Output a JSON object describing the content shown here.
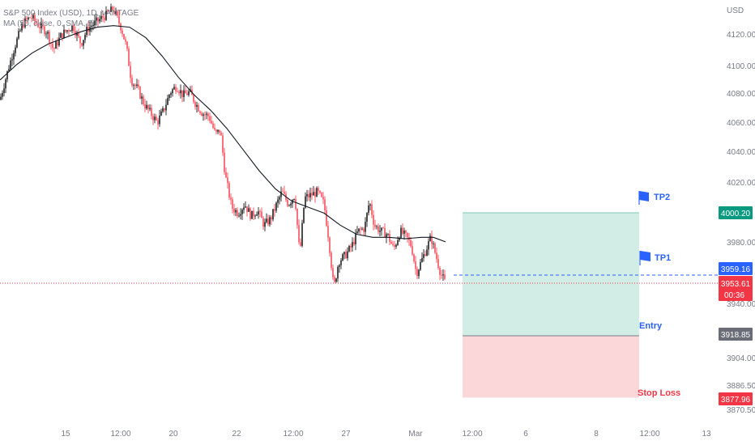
{
  "legend": {
    "symbol_line": "S&P 500 Index (USD), 1D, VANTAGE",
    "ma_line": "MA (50, close, 0, SMA, 5)"
  },
  "price_axis": {
    "currency": "USD"
  },
  "levels": {
    "tp2": {
      "label": "TP2",
      "price_tag": "4000.20"
    },
    "tp1": {
      "label": "TP1"
    },
    "entry": {
      "label": "Entry",
      "price_tag": "3918.85"
    },
    "stop": {
      "label": "Stop Loss",
      "price_tag": "3877.96"
    },
    "dashed": {
      "price_tag": "3959.16"
    },
    "current": {
      "price_tag": "3953.61",
      "countdown": "00:36"
    }
  },
  "colors": {
    "up": "#000000",
    "down": "#f23645",
    "ma": "#131722",
    "profit_zone": "#d2ece6",
    "loss_zone": "#fbd7da",
    "tp_flag": "#2962ff",
    "entry_label": "#2962ff",
    "stop_label": "#f23645",
    "tag_tp2": "#089981",
    "tag_entry": "#787b86",
    "tag_stop": "#f23645",
    "tag_dashed": "#2962ff",
    "tag_current": "#f23645"
  },
  "chart_data": {
    "type": "candlestick",
    "y_axis": {
      "ticks": [
        4120.0,
        4100.0,
        4080.0,
        4060.0,
        4040.0,
        4020.0,
        3980.0,
        3940.0,
        3904.0,
        3886.5,
        3870.5
      ],
      "tick_labels": [
        "4120.00",
        "4100.00",
        "4080.00",
        "4060.00",
        "4040.00",
        "4020.00",
        "3980.00",
        "3940.00",
        "3904.00",
        "3886.50",
        "3870.50"
      ]
    },
    "x_axis": {
      "tick_labels": [
        "15",
        "12:00",
        "20",
        "22",
        "12:00",
        "27",
        "Mar",
        "12:00",
        "6",
        "8",
        "12:00",
        "13"
      ]
    },
    "position": {
      "tp2": 4000.2,
      "entry": 3918.85,
      "stop": 3877.96,
      "tp1": 3965.0
    },
    "close_path": [
      [
        0,
        4075
      ],
      [
        10,
        4095
      ],
      [
        18,
        4110
      ],
      [
        28,
        4125
      ],
      [
        38,
        4130
      ],
      [
        48,
        4124
      ],
      [
        58,
        4120
      ],
      [
        66,
        4108
      ],
      [
        76,
        4118
      ],
      [
        90,
        4124
      ],
      [
        100,
        4112
      ],
      [
        108,
        4122
      ],
      [
        118,
        4126
      ],
      [
        128,
        4130
      ],
      [
        140,
        4135
      ],
      [
        150,
        4122
      ],
      [
        156,
        4110
      ],
      [
        162,
        4088
      ],
      [
        170,
        4082
      ],
      [
        178,
        4072
      ],
      [
        186,
        4066
      ],
      [
        194,
        4060
      ],
      [
        202,
        4068
      ],
      [
        210,
        4080
      ],
      [
        218,
        4084
      ],
      [
        226,
        4078
      ],
      [
        234,
        4080
      ],
      [
        242,
        4072
      ],
      [
        250,
        4066
      ],
      [
        258,
        4064
      ],
      [
        266,
        4052
      ],
      [
        272,
        4055
      ],
      [
        278,
        4025
      ],
      [
        286,
        4004
      ],
      [
        294,
        4000
      ],
      [
        302,
        4006
      ],
      [
        310,
        3998
      ],
      [
        318,
        4002
      ],
      [
        326,
        3992
      ],
      [
        334,
        3996
      ],
      [
        340,
        4004
      ],
      [
        348,
        4014
      ],
      [
        356,
        4006
      ],
      [
        364,
        4012
      ],
      [
        370,
        3972
      ],
      [
        376,
        4010
      ],
      [
        384,
        4012
      ],
      [
        392,
        4014
      ],
      [
        400,
        4006
      ],
      [
        406,
        3982
      ],
      [
        412,
        3950
      ],
      [
        418,
        3968
      ],
      [
        426,
        3972
      ],
      [
        434,
        3978
      ],
      [
        442,
        3988
      ],
      [
        450,
        3990
      ],
      [
        456,
        4008
      ],
      [
        462,
        3992
      ],
      [
        470,
        3988
      ],
      [
        478,
        3986
      ],
      [
        486,
        3976
      ],
      [
        494,
        3988
      ],
      [
        502,
        3984
      ],
      [
        508,
        3978
      ],
      [
        514,
        3960
      ],
      [
        520,
        3968
      ],
      [
        526,
        3976
      ],
      [
        532,
        3984
      ],
      [
        538,
        3972
      ],
      [
        544,
        3960
      ],
      [
        550,
        3953.61
      ]
    ],
    "ma_path": [
      [
        0,
        4088
      ],
      [
        20,
        4098
      ],
      [
        40,
        4106
      ],
      [
        60,
        4112
      ],
      [
        80,
        4116
      ],
      [
        100,
        4120
      ],
      [
        120,
        4123
      ],
      [
        140,
        4124
      ],
      [
        160,
        4123
      ],
      [
        180,
        4116
      ],
      [
        200,
        4104
      ],
      [
        220,
        4090
      ],
      [
        240,
        4078
      ],
      [
        260,
        4068
      ],
      [
        280,
        4056
      ],
      [
        300,
        4042
      ],
      [
        320,
        4028
      ],
      [
        340,
        4016
      ],
      [
        360,
        4008
      ],
      [
        380,
        4004
      ],
      [
        400,
        4000
      ],
      [
        420,
        3992
      ],
      [
        440,
        3986
      ],
      [
        460,
        3984
      ],
      [
        480,
        3984
      ],
      [
        500,
        3983
      ],
      [
        520,
        3984
      ],
      [
        535,
        3984
      ],
      [
        550,
        3981
      ]
    ]
  }
}
